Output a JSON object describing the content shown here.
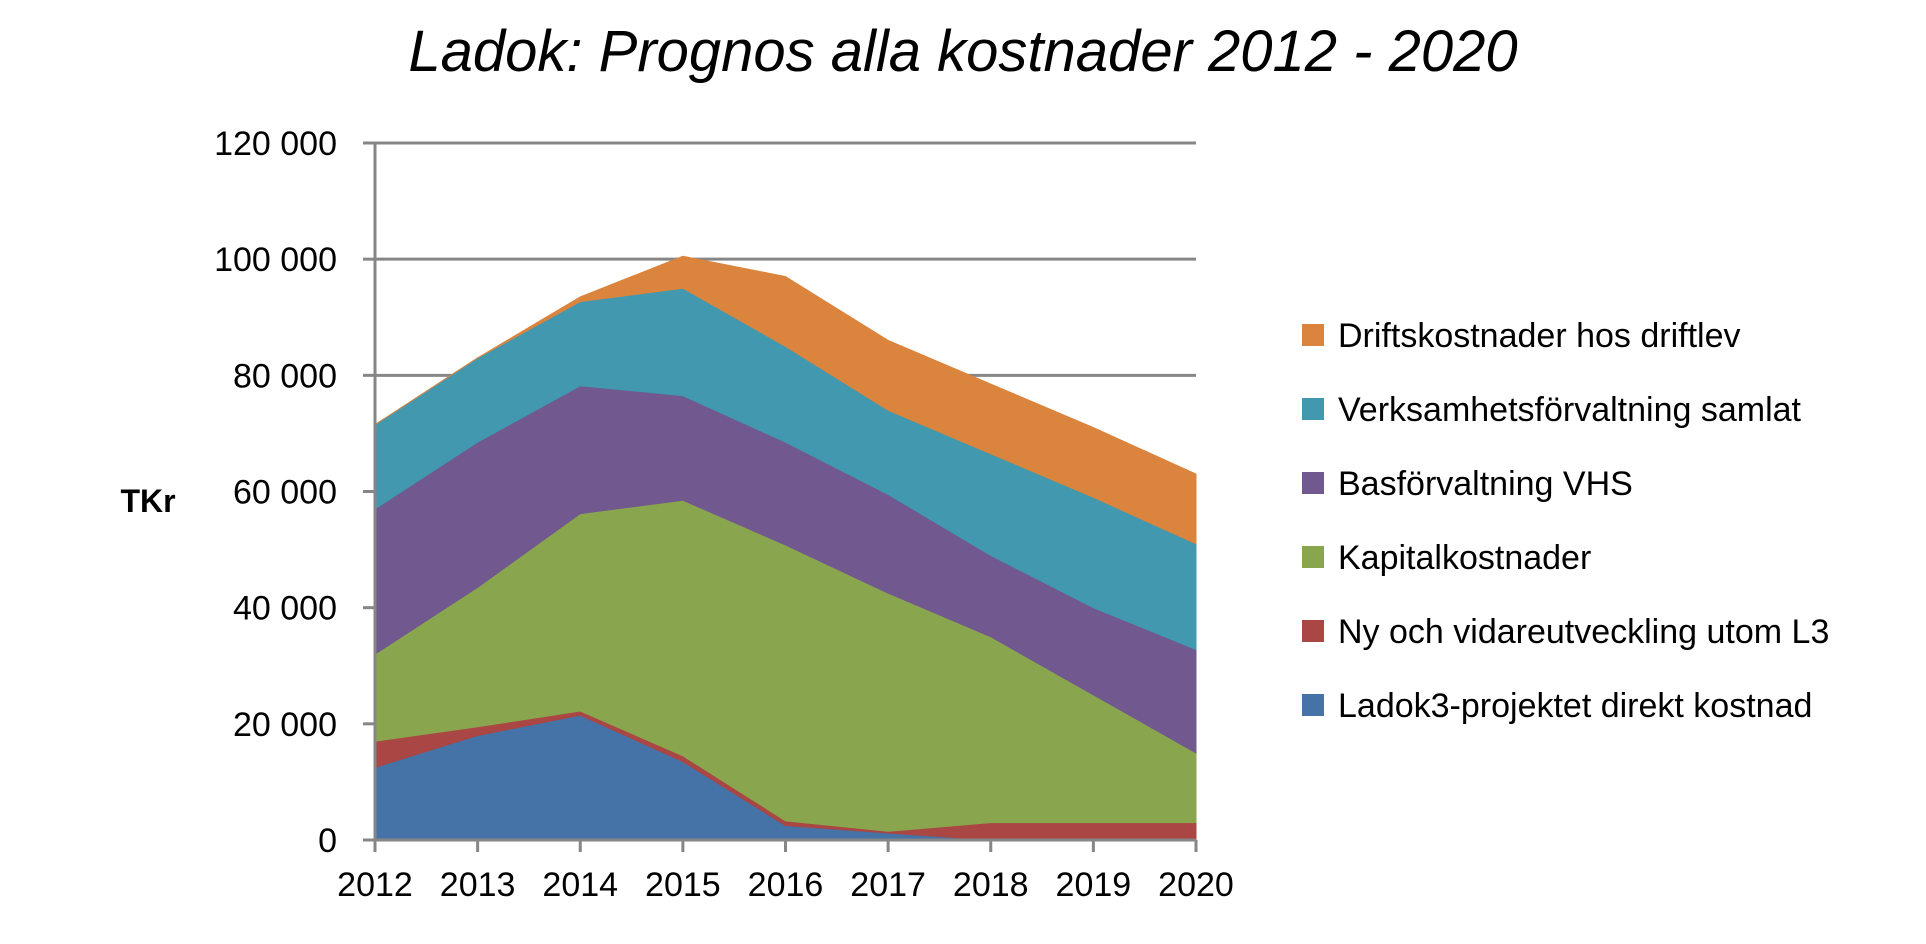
{
  "chart_data": {
    "type": "area",
    "stacked": true,
    "title": "Ladok: Prognos alla kostnader 2012 - 2020",
    "ylabel": "TKr",
    "xlabel": "",
    "x": [
      "2012",
      "2013",
      "2014",
      "2015",
      "2016",
      "2017",
      "2018",
      "2019",
      "2020"
    ],
    "ylim": [
      0,
      120000
    ],
    "yticks": [
      0,
      20000,
      40000,
      60000,
      80000,
      100000,
      120000
    ],
    "ytick_labels": [
      "0",
      "20 000",
      "40 000",
      "60 000",
      "80 000",
      "100 000",
      "120 000"
    ],
    "grid": true,
    "legend_position": "right",
    "series": [
      {
        "name": "Ladok3-projektet direkt kostnad",
        "color": "#4572A7",
        "values": [
          12500,
          18000,
          21500,
          13500,
          2500,
          1200,
          0,
          0,
          0
        ]
      },
      {
        "name": "Ny och vidareutveckling utom L3",
        "color": "#AA4643",
        "values": [
          4500,
          1500,
          700,
          1000,
          800,
          300,
          3000,
          3000,
          3000
        ]
      },
      {
        "name": "Kapitalkostnader",
        "color": "#89A54E",
        "values": [
          15000,
          24000,
          34000,
          44000,
          47500,
          41000,
          32000,
          22000,
          12000
        ]
      },
      {
        "name": "Basförvaltning VHS",
        "color": "#71588F",
        "values": [
          25000,
          25000,
          22000,
          18000,
          17700,
          17000,
          14000,
          15000,
          17800
        ]
      },
      {
        "name": "Verksamhetsförvaltning samlat",
        "color": "#4198AF",
        "values": [
          14500,
          14500,
          14500,
          18500,
          16500,
          14500,
          17500,
          19000,
          18200
        ]
      },
      {
        "name": "Driftskostnader hos driftlev",
        "color": "#DB843D",
        "values": [
          0,
          0,
          800,
          5500,
          12000,
          12000,
          12000,
          12000,
          12000
        ]
      }
    ]
  }
}
